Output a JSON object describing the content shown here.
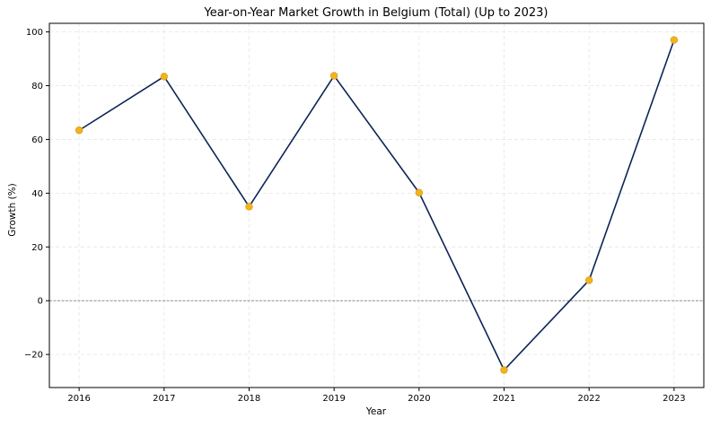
{
  "chart_data": {
    "type": "line",
    "title": "Year-on-Year Market Growth in Belgium (Total) (Up to 2023)",
    "xlabel": "Year",
    "ylabel": "Growth (%)",
    "x": [
      2016,
      2017,
      2018,
      2019,
      2020,
      2021,
      2022,
      2023
    ],
    "series": [
      {
        "values": [
          63.4,
          83.4,
          35.0,
          83.7,
          40.2,
          -25.8,
          7.6,
          97.0
        ]
      }
    ],
    "xlim": [
      2015.65,
      2023.35
    ],
    "ylim": [
      -32.3,
      103.2
    ],
    "xticks": [
      2016,
      2017,
      2018,
      2019,
      2020,
      2021,
      2022,
      2023
    ],
    "xtick_labels": [
      "2016",
      "2017",
      "2018",
      "2019",
      "2020",
      "2021",
      "2022",
      "2023"
    ],
    "yticks": [
      -20,
      0,
      20,
      40,
      60,
      80,
      100
    ],
    "ytick_labels": [
      "−20",
      "0",
      "20",
      "40",
      "60",
      "80",
      "100"
    ],
    "reference_line": 0,
    "grid": true,
    "legend": "none",
    "colors": {
      "line": "#0d2556",
      "marker": "#f2b41c",
      "marker_edge": "#d8a018",
      "zero_line": "#808080",
      "grid": "#e6e6e6"
    }
  }
}
